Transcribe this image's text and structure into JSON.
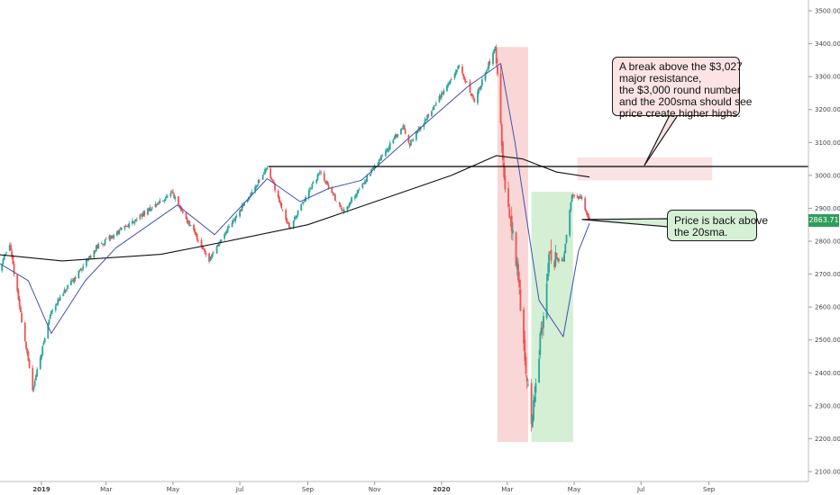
{
  "chart_data": {
    "type": "candlestick",
    "title": "",
    "xlabel": "",
    "ylabel": "",
    "ylim": [
      2100,
      3500
    ],
    "y_ticks": [
      3500,
      3400,
      3300,
      3200,
      3100,
      3000,
      2900,
      2800,
      2700,
      2600,
      2500,
      2400,
      2300,
      2200,
      2100
    ],
    "y_tick_labels": [
      "3500.00",
      "3400.00",
      "3300.00",
      "3200.00",
      "3100.00",
      "3000.00",
      "2900.00",
      "2800.00",
      "2700.00",
      "2600.00",
      "2500.00",
      "2400.00",
      "2300.00",
      "2200.00",
      "2100.00"
    ],
    "x_tick_labels": [
      "2019",
      "Mar",
      "May",
      "Jul",
      "Sep",
      "Nov",
      "2020",
      "Mar",
      "May",
      "Jul",
      "Sep"
    ],
    "x_ticks": [
      "2019-01-01",
      "2019-03-01",
      "2019-05-01",
      "2019-07-01",
      "2019-09-01",
      "2019-11-01",
      "2020-01-01",
      "2020-03-01",
      "2020-05-01",
      "2020-07-01",
      "2020-09-01"
    ],
    "last_price": 2863.71,
    "last_price_label": "2863.71",
    "price_key_points": [
      [
        "2018-11-20",
        2690
      ],
      [
        "2018-12-03",
        2790
      ],
      [
        "2018-12-24",
        2350
      ],
      [
        "2019-01-10",
        2590
      ],
      [
        "2019-02-20",
        2780
      ],
      [
        "2019-04-30",
        2945
      ],
      [
        "2019-06-03",
        2745
      ],
      [
        "2019-07-26",
        3025
      ],
      [
        "2019-08-15",
        2840
      ],
      [
        "2019-09-12",
        3010
      ],
      [
        "2019-10-03",
        2890
      ],
      [
        "2019-11-27",
        3150
      ],
      [
        "2019-12-03",
        3095
      ],
      [
        "2020-01-17",
        3330
      ],
      [
        "2020-01-31",
        3225
      ],
      [
        "2020-02-19",
        3390
      ],
      [
        "2020-02-27",
        2980
      ],
      [
        "2020-03-09",
        2750
      ],
      [
        "2020-03-23",
        2240
      ],
      [
        "2020-04-08",
        2750
      ],
      [
        "2020-04-21",
        2740
      ],
      [
        "2020-04-29",
        2940
      ],
      [
        "2020-05-08",
        2930
      ],
      [
        "2020-05-15",
        2864
      ]
    ],
    "sma20_key_points": [
      [
        "2018-11-20",
        2740
      ],
      [
        "2018-12-20",
        2680
      ],
      [
        "2019-01-10",
        2520
      ],
      [
        "2019-02-10",
        2680
      ],
      [
        "2019-03-10",
        2780
      ],
      [
        "2019-05-05",
        2910
      ],
      [
        "2019-06-08",
        2820
      ],
      [
        "2019-07-26",
        2990
      ],
      [
        "2019-08-25",
        2920
      ],
      [
        "2019-09-20",
        2960
      ],
      [
        "2019-10-20",
        2985
      ],
      [
        "2019-12-01",
        3110
      ],
      [
        "2020-01-25",
        3270
      ],
      [
        "2020-02-24",
        3340
      ],
      [
        "2020-03-08",
        3100
      ],
      [
        "2020-03-30",
        2620
      ],
      [
        "2020-04-21",
        2510
      ],
      [
        "2020-05-05",
        2770
      ],
      [
        "2020-05-15",
        2855
      ]
    ],
    "sma200_key_points": [
      [
        "2018-11-20",
        2760
      ],
      [
        "2019-01-20",
        2740
      ],
      [
        "2019-04-20",
        2760
      ],
      [
        "2019-06-20",
        2800
      ],
      [
        "2019-09-01",
        2850
      ],
      [
        "2019-11-10",
        2930
      ],
      [
        "2020-01-10",
        3000
      ],
      [
        "2020-02-20",
        3060
      ],
      [
        "2020-03-15",
        3050
      ],
      [
        "2020-04-15",
        3010
      ],
      [
        "2020-05-15",
        2995
      ]
    ],
    "resistance_level": 3027,
    "resistance_start": "2019-07-27",
    "zones": [
      {
        "color": "#f8d0d0",
        "x0": "2020-02-21",
        "x1": "2020-03-20",
        "y0": 2190,
        "y1": 3390
      },
      {
        "color": "#cdeccd",
        "x0": "2020-03-23",
        "x1": "2020-04-30",
        "y0": 2190,
        "y1": 2950
      },
      {
        "color": "#fadede",
        "x0": "2020-05-04",
        "x1": "2020-09-04",
        "y0": 2985,
        "y1": 3055
      }
    ],
    "annotations": [
      {
        "name": "resistance-callout",
        "style": "red",
        "lines": [
          "A break above the $3,027",
          "major resistance,",
          "the $3,000 round number",
          "and the 200sma should see",
          "price create higher highs."
        ],
        "pointer": {
          "date": "2020-07-04",
          "price": 3030
        }
      },
      {
        "name": "sma20-callout",
        "style": "green",
        "lines": [
          "Price is back above",
          "the 20sma."
        ],
        "pointer": {
          "date": "2020-05-08",
          "price": 2866
        }
      }
    ],
    "colors": {
      "up": "#26a69a",
      "down": "#ef5350",
      "sma20": "#3f51b5",
      "sma200": "#111111",
      "price_tag": "#2e9e5b"
    }
  }
}
